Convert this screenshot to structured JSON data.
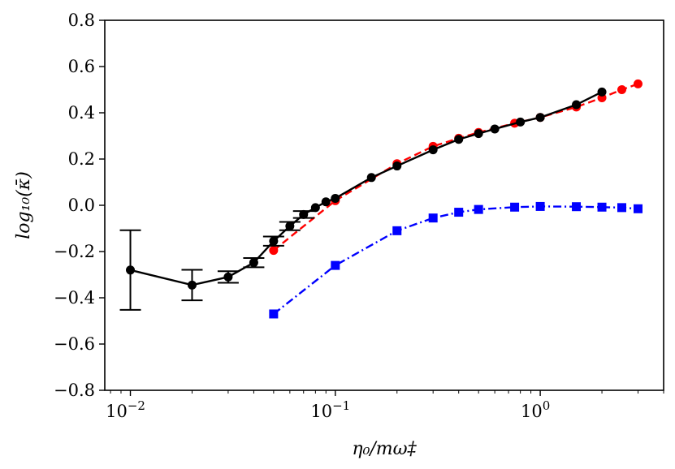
{
  "chart_data": {
    "type": "line",
    "title": "",
    "xlabel": "η₀/mω‡",
    "ylabel": "log₁₀(κ̄)",
    "xscale": "log",
    "xlim": [
      0.0075,
      4.0
    ],
    "ylim": [
      -0.8,
      0.8
    ],
    "y_ticks": [
      -0.8,
      -0.6,
      -0.4,
      -0.2,
      0.0,
      0.2,
      0.4,
      0.6,
      0.8
    ],
    "y_tick_labels": [
      "−0.8",
      "−0.6",
      "−0.4",
      "−0.2",
      "0.0",
      "0.2",
      "0.4",
      "0.6",
      "0.8"
    ],
    "x_ticks": [
      0.01,
      0.1,
      1
    ],
    "x_tick_labels": [
      {
        "base": "10",
        "exp": "−2"
      },
      {
        "base": "10",
        "exp": "−1"
      },
      {
        "base": "10",
        "exp": "0"
      }
    ],
    "grid": false,
    "series": [
      {
        "name": "black",
        "color": "#000000",
        "linestyle": "solid",
        "marker": "circle",
        "x": [
          0.01,
          0.02,
          0.03,
          0.04,
          0.05,
          0.06,
          0.07,
          0.08,
          0.09,
          0.1,
          0.15,
          0.2,
          0.3,
          0.4,
          0.5,
          0.6,
          0.8,
          1.0,
          1.5,
          2.0
        ],
        "y": [
          -0.28,
          -0.345,
          -0.31,
          -0.248,
          -0.155,
          -0.09,
          -0.04,
          -0.01,
          0.015,
          0.03,
          0.12,
          0.17,
          0.24,
          0.285,
          0.31,
          0.33,
          0.36,
          0.38,
          0.435,
          0.49
        ],
        "yerr": [
          0.172,
          0.066,
          0.025,
          0.02,
          0.02,
          0.018,
          0.015,
          0.0,
          0.0,
          0.0,
          0.0,
          0.0,
          0.0,
          0.0,
          0.0,
          0.0,
          0.0,
          0.0,
          0.0,
          0.0
        ]
      },
      {
        "name": "red",
        "color": "#ff0000",
        "linestyle": "dashed",
        "marker": "circle",
        "x": [
          0.05,
          0.1,
          0.2,
          0.3,
          0.4,
          0.5,
          0.75,
          1.0,
          1.5,
          2.0,
          2.5,
          3.0
        ],
        "y": [
          -0.195,
          0.02,
          0.18,
          0.255,
          0.29,
          0.315,
          0.355,
          0.38,
          0.425,
          0.465,
          0.5,
          0.525
        ]
      },
      {
        "name": "blue",
        "color": "#0000ff",
        "linestyle": "dashdot",
        "marker": "square",
        "x": [
          0.05,
          0.1,
          0.2,
          0.3,
          0.4,
          0.5,
          0.75,
          1.0,
          1.5,
          2.0,
          2.5,
          3.0
        ],
        "y": [
          -0.47,
          -0.26,
          -0.11,
          -0.055,
          -0.03,
          -0.018,
          -0.008,
          -0.005,
          -0.006,
          -0.008,
          -0.01,
          -0.015
        ]
      }
    ]
  }
}
